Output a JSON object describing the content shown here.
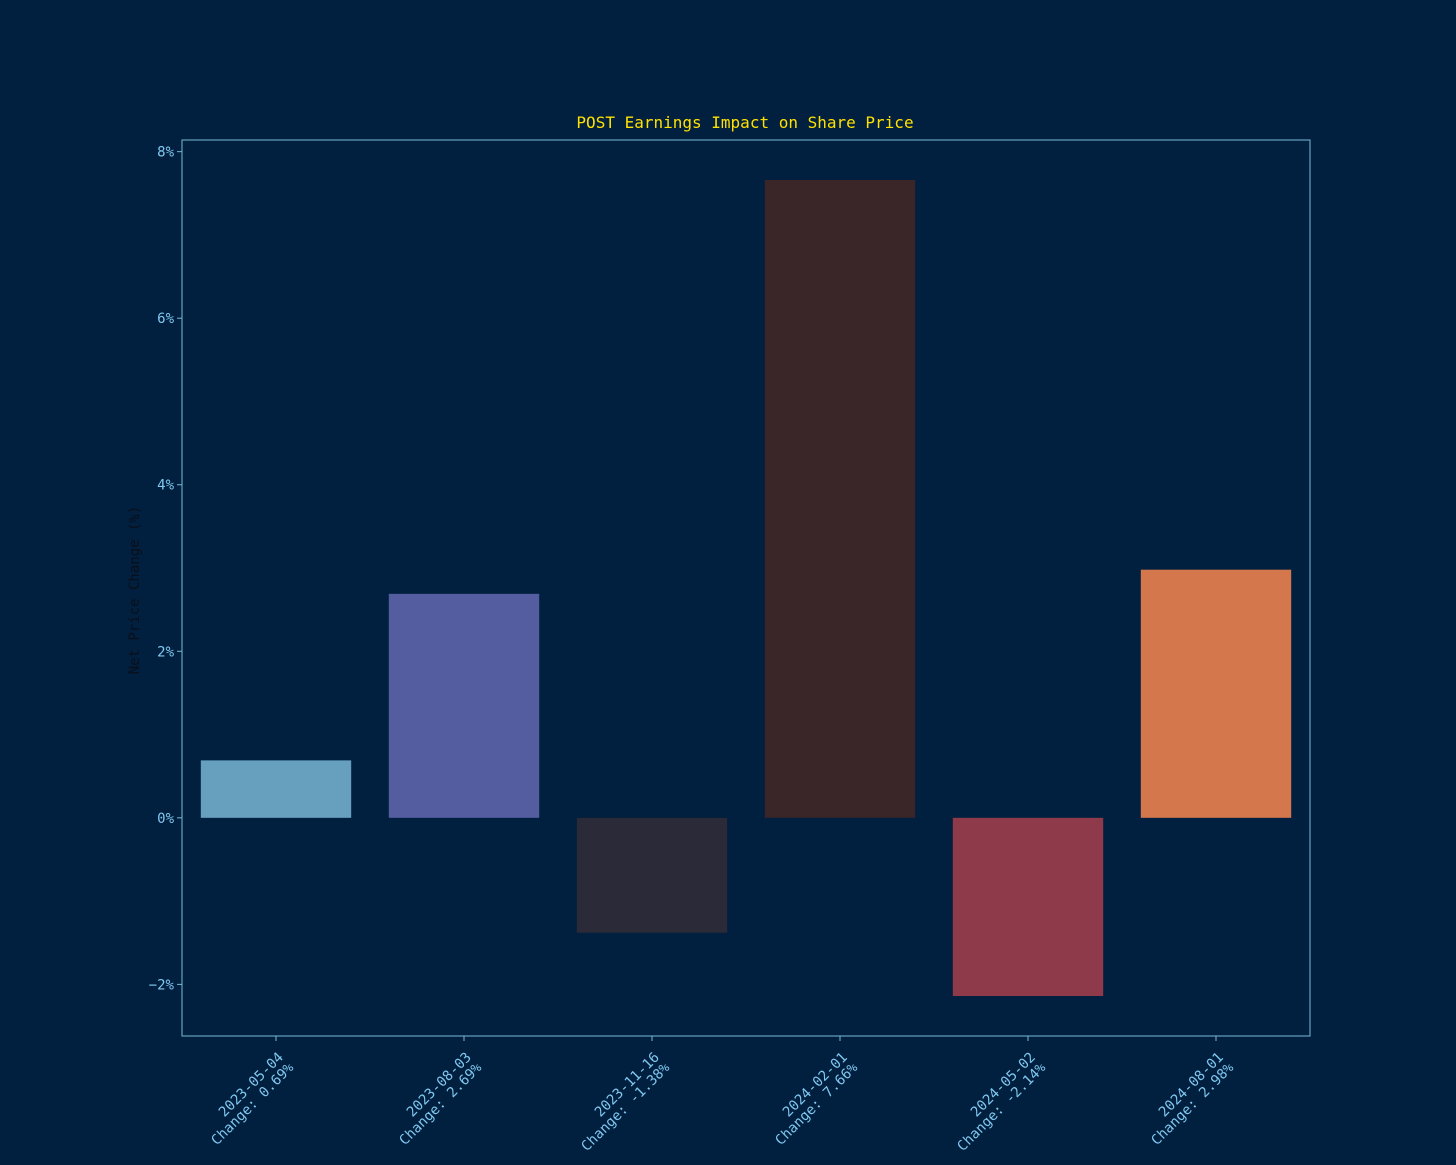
{
  "chart_data": {
    "type": "bar",
    "title": "POST Earnings Impact on Share Price",
    "y_label": "Net Price Change (%)",
    "categories": [
      "2023-05-04",
      "2023-08-03",
      "2023-11-16",
      "2024-02-01",
      "2024-05-02",
      "2024-08-01"
    ],
    "values": [
      0.69,
      2.69,
      -1.38,
      7.66,
      -2.14,
      2.98
    ],
    "value_labels": [
      "Change: 0.69%",
      "Change: 2.69%",
      "Change: -1.38%",
      "Change: 7.66%",
      "Change: -2.14%",
      "Change: 2.98%"
    ],
    "colors": [
      "#679fbf",
      "#545da0",
      "#2b2a38",
      "#3a2528",
      "#8e3a4b",
      "#d4774d"
    ],
    "ylim": [
      -2.62,
      8.14
    ],
    "yticks": [
      {
        "value": -2,
        "label": "−2%"
      },
      {
        "value": 0,
        "label": "0%"
      },
      {
        "value": 2,
        "label": "2%"
      },
      {
        "value": 4,
        "label": "4%"
      },
      {
        "value": 6,
        "label": "6%"
      },
      {
        "value": 8,
        "label": "8%"
      }
    ],
    "grid": false
  }
}
